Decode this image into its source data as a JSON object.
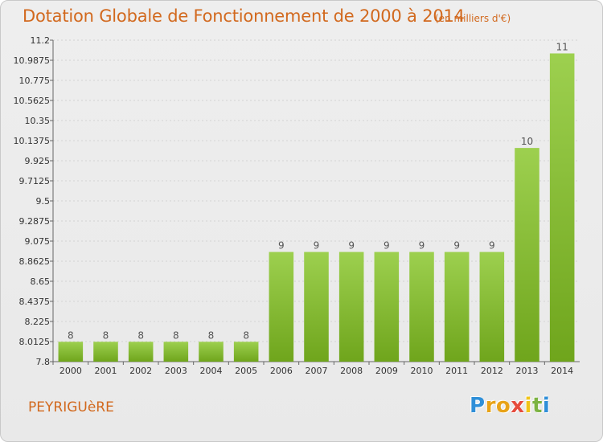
{
  "header": {
    "title": "Dotation Globale de Fonctionnement de 2000 à 2014",
    "subtitle": "(en milliers d'€)"
  },
  "footer": {
    "commune": "PEYRIGUèRE",
    "logo": {
      "letters": [
        "P",
        "r",
        "o",
        "x",
        "i",
        "t",
        "i"
      ],
      "colors": [
        "#2f8fd8",
        "#e8a318",
        "#e8a318",
        "#e64b3c",
        "#f0c419",
        "#7cb342",
        "#2f8fd8"
      ]
    }
  },
  "chart_data": {
    "type": "bar",
    "categories": [
      "2000",
      "2001",
      "2002",
      "2003",
      "2004",
      "2005",
      "2006",
      "2007",
      "2008",
      "2009",
      "2010",
      "2011",
      "2012",
      "2013",
      "2014"
    ],
    "values": [
      8,
      8,
      8,
      8,
      8,
      8,
      9,
      9,
      9,
      9,
      9,
      9,
      9,
      10,
      11
    ],
    "bar_heights": [
      8.01,
      8.01,
      8.01,
      8.01,
      8.01,
      8.01,
      8.96,
      8.96,
      8.96,
      8.96,
      8.96,
      8.96,
      8.96,
      10.06,
      11.06
    ],
    "data_labels": [
      "8",
      "8",
      "8",
      "8",
      "8",
      "8",
      "9",
      "9",
      "9",
      "9",
      "9",
      "9",
      "9",
      "10",
      "11"
    ],
    "yticks": [
      "7.8",
      "8.0125",
      "8.225",
      "8.4375",
      "8.65",
      "8.8625",
      "9.075",
      "9.2875",
      "9.5",
      "9.7125",
      "9.925",
      "10.1375",
      "10.35",
      "10.5625",
      "10.775",
      "10.9875",
      "11.2"
    ],
    "ylim": [
      7.8,
      11.2
    ],
    "grid": true,
    "title": "Dotation Globale de Fonctionnement de 2000 à 2014",
    "xlabel": "",
    "ylabel": "",
    "colors": {
      "bar_top": "#9dd04f",
      "bar_bottom": "#6fa51c",
      "grid": "#d3d3d3",
      "text": "#d2691e"
    }
  }
}
